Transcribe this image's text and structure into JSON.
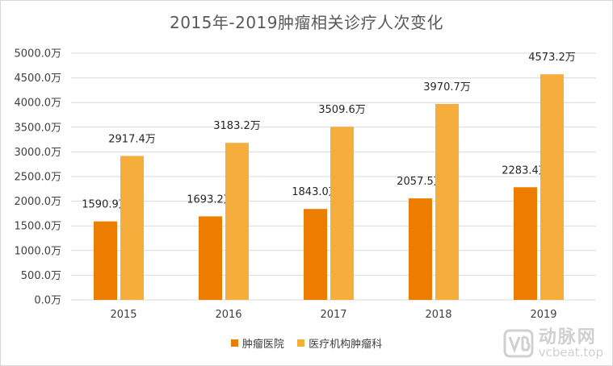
{
  "chart_data": {
    "type": "bar",
    "title": "2015年-2019肿瘤相关诊疗人次变化",
    "categories": [
      "2015",
      "2016",
      "2017",
      "2018",
      "2019"
    ],
    "series": [
      {
        "name": "肿瘤医院",
        "values": [
          1590.9,
          1693.2,
          1843.0,
          2057.5,
          2283.4
        ],
        "color": "#ed7d00",
        "labels": [
          "1590.9万",
          "1693.2万",
          "1843.0万",
          "2057.5万",
          "2283.4万"
        ]
      },
      {
        "name": "医疗机构肿瘤科",
        "values": [
          2917.4,
          3183.2,
          3509.6,
          3970.7,
          4573.2
        ],
        "color": "#f5ae3c",
        "labels": [
          "2917.4万",
          "3183.2万",
          "3509.6万",
          "3970.7万",
          "4573.2万"
        ]
      }
    ],
    "ylim": [
      0,
      5000
    ],
    "yticks": [
      0,
      500,
      1000,
      1500,
      2000,
      2500,
      3000,
      3500,
      4000,
      4500,
      5000
    ],
    "ytick_labels": [
      "0.0万",
      "500.0万",
      "1000.0万",
      "1500.0万",
      "2000.0万",
      "2500.0万",
      "3000.0万",
      "3500.0万",
      "4000.0万",
      "4500.0万",
      "5000.0万"
    ],
    "grid": true,
    "legend": "bottom",
    "gridline_color": "#d9d9d9"
  },
  "watermark": {
    "cn": "动脉网",
    "url": "vcbeat.top",
    "logo_icon": "vb-logo-icon"
  }
}
